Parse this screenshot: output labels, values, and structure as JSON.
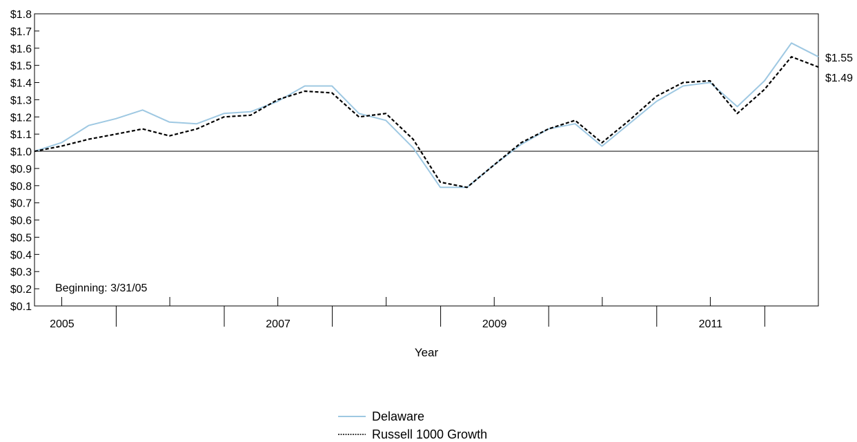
{
  "chart_data": {
    "type": "line",
    "xlabel": "Year",
    "ylabel": "",
    "ylim": [
      0.1,
      1.8
    ],
    "ytick_values": [
      0.1,
      0.2,
      0.3,
      0.4,
      0.5,
      0.6,
      0.7,
      0.8,
      0.9,
      1.0,
      1.1,
      1.2,
      1.3,
      1.4,
      1.5,
      1.6,
      1.7,
      1.8
    ],
    "ytick_labels": [
      "$0.1",
      "$0.2",
      "$0.3",
      "$0.4",
      "$0.5",
      "$0.6",
      "$0.7",
      "$0.8",
      "$0.9",
      "$1.0",
      "$1.1",
      "$1.2",
      "$1.3",
      "$1.4",
      "$1.5",
      "$1.6",
      "$1.7",
      "$1.8"
    ],
    "xlim": [
      "2005-03-31",
      "2012-06-30"
    ],
    "year_labels": [
      "2005",
      "2007",
      "2009",
      "2011"
    ],
    "x": [
      "2005-03-31",
      "2005-06-30",
      "2005-09-30",
      "2005-12-31",
      "2006-03-31",
      "2006-06-30",
      "2006-09-30",
      "2006-12-31",
      "2007-03-31",
      "2007-06-30",
      "2007-09-30",
      "2007-12-31",
      "2008-03-31",
      "2008-06-30",
      "2008-09-30",
      "2008-12-31",
      "2009-03-31",
      "2009-06-30",
      "2009-09-30",
      "2009-12-31",
      "2010-03-31",
      "2010-06-30",
      "2010-09-30",
      "2010-12-31",
      "2011-03-31",
      "2011-06-30",
      "2011-09-30",
      "2011-12-31",
      "2012-03-31",
      "2012-06-30"
    ],
    "series": [
      {
        "name": "Delaware",
        "color": "#9ec8e2",
        "dash": "solid",
        "values": [
          1.0,
          1.05,
          1.15,
          1.19,
          1.24,
          1.17,
          1.16,
          1.22,
          1.23,
          1.29,
          1.38,
          1.38,
          1.22,
          1.18,
          1.02,
          0.79,
          0.79,
          0.92,
          1.04,
          1.13,
          1.16,
          1.03,
          1.16,
          1.29,
          1.38,
          1.4,
          1.26,
          1.41,
          1.63,
          1.55
        ],
        "end_label": "$1.55"
      },
      {
        "name": "Russell 1000 Growth",
        "color": "#000000",
        "dash": "dashed",
        "values": [
          1.0,
          1.03,
          1.07,
          1.1,
          1.13,
          1.09,
          1.13,
          1.2,
          1.21,
          1.3,
          1.35,
          1.34,
          1.2,
          1.22,
          1.07,
          0.82,
          0.79,
          0.92,
          1.05,
          1.13,
          1.18,
          1.05,
          1.18,
          1.32,
          1.4,
          1.41,
          1.22,
          1.36,
          1.55,
          1.49
        ],
        "end_label": "$1.49"
      }
    ],
    "reference_line": 1.0,
    "annotation": "Beginning: 3/31/05",
    "grid": false,
    "legend_position": "bottom-center"
  }
}
